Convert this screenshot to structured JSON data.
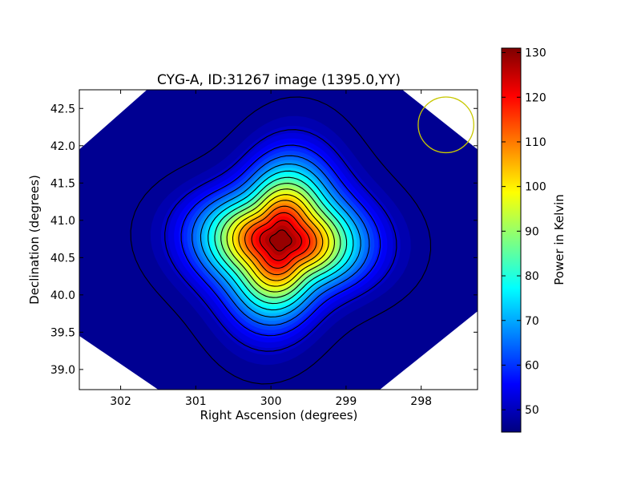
{
  "chart_data": {
    "type": "heatmap",
    "title": "CYG-A, ID:31267 image (1395.0,YY)",
    "xlabel": "Right Ascension (degrees)",
    "ylabel": "Declination (degrees)",
    "xlim": [
      302.55,
      297.25
    ],
    "ylim": [
      38.73,
      42.75
    ],
    "x_ticks": [
      302,
      301,
      300,
      299,
      298
    ],
    "y_ticks": [
      39.0,
      39.5,
      40.0,
      40.5,
      41.0,
      41.5,
      42.0,
      42.5
    ],
    "x_tick_labels": [
      "302",
      "301",
      "300",
      "299",
      "298"
    ],
    "y_tick_labels": [
      "39.0",
      "39.5",
      "40.0",
      "40.5",
      "41.0",
      "41.5",
      "42.0",
      "42.5"
    ],
    "colorbar": {
      "label": "Power in Kelvin",
      "range": [
        45,
        131
      ],
      "ticks": [
        50,
        60,
        70,
        80,
        90,
        100,
        110,
        120,
        130
      ],
      "tick_labels": [
        "50",
        "60",
        "70",
        "80",
        "90",
        "100",
        "110",
        "120",
        "130"
      ],
      "colormap": "jet"
    },
    "source": {
      "ra": 299.87,
      "dec": 40.73,
      "peak": 131,
      "background": 46
    },
    "contour_levels": [
      47,
      52,
      58,
      64,
      70,
      76,
      82,
      88,
      94,
      100,
      106,
      112,
      118,
      124,
      129
    ],
    "beam_circle": {
      "ra": 297.67,
      "dec": 42.28,
      "radius_deg": 0.37,
      "color": "#c8c800"
    },
    "image_boundary": [
      [
        301.65,
        42.75
      ],
      [
        302.55,
        41.95
      ],
      [
        302.55,
        39.45
      ],
      [
        301.5,
        38.73
      ],
      [
        298.55,
        38.73
      ],
      [
        297.25,
        39.78
      ],
      [
        297.25,
        41.95
      ],
      [
        298.25,
        42.75
      ]
    ],
    "grid": false
  }
}
